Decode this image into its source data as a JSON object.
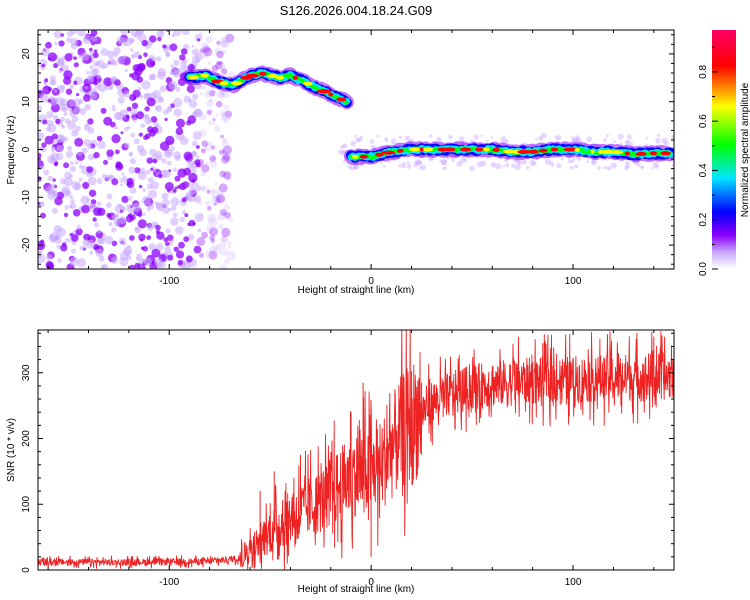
{
  "chart_data": [
    {
      "type": "heatmap",
      "title": "S126.2026.004.18.24.G09",
      "xlabel": "Height of straight line (km)",
      "ylabel": "Frequency (Hz)",
      "xlim": [
        -165,
        150
      ],
      "ylim": [
        -25,
        25
      ],
      "x_ticks": [
        -100,
        0,
        100
      ],
      "x_tick_labels": [
        "-100",
        "0",
        "100"
      ],
      "y_ticks": [
        -20,
        -10,
        0,
        10,
        20
      ],
      "y_tick_labels": [
        "-20",
        "-10",
        "0",
        "10",
        "20"
      ],
      "noise_region_x": [
        -165,
        -75
      ],
      "trace_segments": [
        {
          "name": "upper-trace",
          "points": [
            [
              -90,
              15
            ],
            [
              -82,
              15.5
            ],
            [
              -75,
              14
            ],
            [
              -68,
              13.5
            ],
            [
              -62,
              15
            ],
            [
              -55,
              16
            ],
            [
              -50,
              15.5
            ],
            [
              -45,
              15
            ],
            [
              -40,
              15.5
            ],
            [
              -35,
              14.5
            ],
            [
              -30,
              13.5
            ],
            [
              -25,
              12.5
            ],
            [
              -20,
              11.5
            ],
            [
              -15,
              10.5
            ],
            [
              -12,
              10
            ]
          ]
        },
        {
          "name": "lower-trace",
          "points": [
            [
              -10,
              -1.5
            ],
            [
              0,
              -1.5
            ],
            [
              10,
              -0.5
            ],
            [
              20,
              0
            ],
            [
              30,
              0
            ],
            [
              40,
              0
            ],
            [
              50,
              0
            ],
            [
              60,
              0
            ],
            [
              70,
              -0.5
            ],
            [
              80,
              -0.5
            ],
            [
              90,
              0
            ],
            [
              100,
              0
            ],
            [
              110,
              -0.5
            ],
            [
              120,
              -0.5
            ],
            [
              130,
              -1
            ],
            [
              140,
              -0.8
            ],
            [
              148,
              -0.8
            ]
          ]
        }
      ],
      "colorbar": {
        "label": "Normalized spectral amplitude",
        "ticks": [
          0.0,
          0.2,
          0.4,
          0.6,
          0.8
        ],
        "tick_labels": [
          "0.0",
          "0.2",
          "0.4",
          "0.6",
          "0.8"
        ],
        "range": [
          0,
          0.97
        ],
        "colors": [
          "#ffffff",
          "#8c00ff",
          "#0000ff",
          "#00e5ff",
          "#00ff00",
          "#ffff00",
          "#ff0000",
          "#ff0066"
        ]
      }
    },
    {
      "type": "line",
      "title": "",
      "xlabel": "Height of straight line (km)",
      "ylabel": "SNR (10 * v/v)",
      "xlim": [
        -165,
        150
      ],
      "ylim": [
        0,
        365
      ],
      "x_ticks": [
        -100,
        0,
        100
      ],
      "x_tick_labels": [
        "-100",
        "0",
        "100"
      ],
      "y_ticks": [
        0,
        100,
        200,
        300
      ],
      "y_tick_labels": [
        "0",
        "100",
        "200",
        "300"
      ],
      "series": [
        {
          "name": "SNR",
          "color": "#ee2222",
          "envelope": [
            [
              -165,
              12
            ],
            [
              -120,
              12
            ],
            [
              -80,
              13
            ],
            [
              -65,
              18
            ],
            [
              -55,
              45
            ],
            [
              -45,
              70
            ],
            [
              -35,
              90
            ],
            [
              -25,
              105
            ],
            [
              -15,
              130
            ],
            [
              -8,
              145
            ],
            [
              0,
              150
            ],
            [
              5,
              160
            ],
            [
              10,
              185
            ],
            [
              15,
              210
            ],
            [
              20,
              225
            ],
            [
              25,
              240
            ],
            [
              30,
              255
            ],
            [
              40,
              268
            ],
            [
              50,
              278
            ],
            [
              60,
              283
            ],
            [
              80,
              288
            ],
            [
              100,
              290
            ],
            [
              120,
              292
            ],
            [
              150,
              295
            ]
          ],
          "peaks": [
            [
              -55,
              120
            ],
            [
              -48,
              150
            ],
            [
              -35,
              175
            ],
            [
              -20,
              170
            ],
            [
              -10,
              240
            ],
            [
              -4,
              285
            ],
            [
              0,
              20
            ],
            [
              12,
              250
            ],
            [
              25,
              285
            ],
            [
              60,
              310
            ],
            [
              85,
              345
            ],
            [
              140,
              355
            ]
          ]
        }
      ]
    }
  ]
}
